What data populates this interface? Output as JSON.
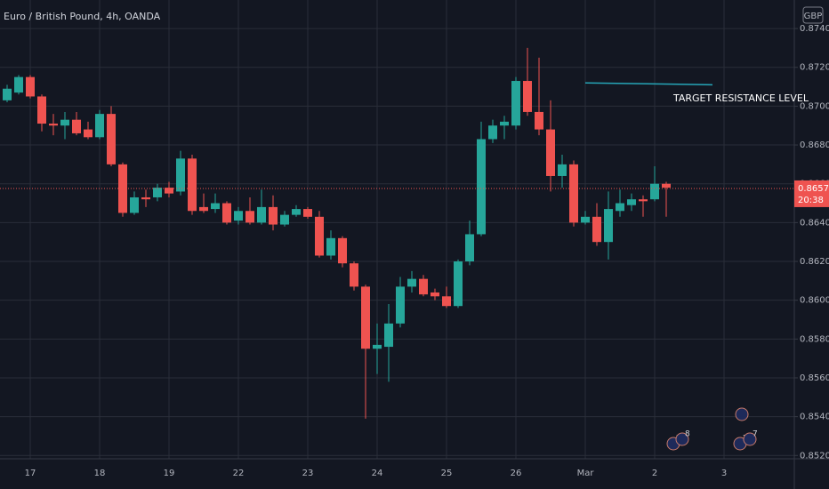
{
  "chart_data": {
    "type": "candlestick",
    "title": "Euro / British Pound, 4h, OANDA",
    "currency": "GBP",
    "categories": [
      null,
      null,
      "17",
      null,
      null,
      null,
      null,
      null,
      "18",
      null,
      null,
      null,
      null,
      null,
      "19",
      null,
      null,
      null,
      null,
      null,
      "22",
      null,
      null,
      null,
      null,
      null,
      "23",
      null,
      null,
      null,
      null,
      null,
      "24",
      null,
      null,
      null,
      null,
      null,
      "25",
      null,
      null,
      null,
      null,
      null,
      "26",
      null,
      null,
      null,
      null,
      null,
      "Mar",
      null,
      null,
      null,
      null,
      null,
      "2",
      null,
      null,
      null,
      null,
      null,
      "3"
    ],
    "open": [
      0.8703,
      0.8707,
      0.8715,
      0.8705,
      0.8691,
      0.869,
      0.8693,
      0.8688,
      0.8684,
      0.8696,
      0.867,
      0.8645,
      0.8653,
      0.8653,
      0.8658,
      0.8656,
      0.8673,
      0.8648,
      0.8647,
      0.865,
      0.8641,
      0.8646,
      0.864,
      0.8648,
      0.8639,
      0.8644,
      0.8647,
      0.8643,
      0.8623,
      0.8632,
      0.8619,
      0.8607,
      0.8575,
      0.8576,
      0.8588,
      0.8607,
      0.8611,
      0.8604,
      0.8602,
      0.8597,
      0.862,
      0.8634,
      0.8683,
      0.869,
      0.869,
      0.8713,
      0.8697,
      0.8688,
      0.8664,
      0.867,
      0.864,
      0.8643,
      0.863,
      0.8646,
      0.8649,
      0.8652,
      0.8652,
      0.866,
      null,
      null,
      null,
      null,
      null
    ],
    "high": [
      0.8711,
      0.8716,
      0.8716,
      0.8706,
      0.8696,
      0.8697,
      0.8697,
      0.8692,
      0.8698,
      0.87,
      0.8671,
      0.8656,
      0.8657,
      0.866,
      0.8661,
      0.8677,
      0.8675,
      0.8655,
      0.8655,
      0.8651,
      0.8648,
      0.8653,
      0.8657,
      0.8654,
      0.8646,
      0.8649,
      0.8648,
      0.8646,
      0.8636,
      0.8633,
      0.862,
      0.8608,
      0.8588,
      0.8598,
      0.8612,
      0.8615,
      0.8613,
      0.8606,
      0.8607,
      0.8621,
      0.8641,
      0.8692,
      0.8693,
      0.8695,
      0.8715,
      0.873,
      0.8725,
      0.8703,
      0.8675,
      0.8672,
      0.8646,
      0.865,
      0.8656,
      0.8657,
      0.8655,
      0.8654,
      0.8669,
      0.8661,
      null,
      null,
      null,
      null,
      null
    ],
    "low": [
      0.8702,
      0.8706,
      0.8704,
      0.8687,
      0.8685,
      0.8683,
      0.8685,
      0.8683,
      0.8683,
      0.8669,
      0.8643,
      0.8644,
      0.8648,
      0.8651,
      0.8653,
      0.8654,
      0.8644,
      0.8645,
      0.8645,
      0.8639,
      0.8639,
      0.8639,
      0.8639,
      0.8636,
      0.8638,
      0.8643,
      0.8642,
      0.8622,
      0.8621,
      0.8617,
      0.8605,
      0.8539,
      0.8562,
      0.8558,
      0.8586,
      0.8604,
      0.8602,
      0.86,
      0.8596,
      0.8596,
      0.8618,
      0.8633,
      0.8681,
      0.8683,
      0.8688,
      0.8695,
      0.8685,
      0.8656,
      0.8658,
      0.8638,
      0.8639,
      0.8628,
      0.8621,
      0.8643,
      0.8646,
      0.8643,
      0.8651,
      0.8643,
      null,
      null,
      null,
      null,
      null
    ],
    "close": [
      0.8709,
      0.8715,
      0.8705,
      0.8691,
      0.869,
      0.8693,
      0.8686,
      0.8684,
      0.8696,
      0.867,
      0.8645,
      0.8653,
      0.8652,
      0.8658,
      0.8655,
      0.8673,
      0.8646,
      0.8646,
      0.865,
      0.864,
      0.8646,
      0.864,
      0.8648,
      0.8639,
      0.8644,
      0.8647,
      0.8643,
      0.8623,
      0.8632,
      0.8619,
      0.8607,
      0.8575,
      0.8577,
      0.8588,
      0.8607,
      0.8611,
      0.8603,
      0.8602,
      0.8597,
      0.862,
      0.8634,
      0.8683,
      0.869,
      0.8692,
      0.8713,
      0.8697,
      0.8688,
      0.8664,
      0.867,
      0.864,
      0.8643,
      0.863,
      0.8647,
      0.865,
      0.8652,
      0.8651,
      0.866,
      0.8658,
      null,
      null,
      null,
      null,
      null
    ],
    "up_color": "#26a69a",
    "down_color": "#ef5350",
    "ylim": [
      0.85183,
      0.87547
    ],
    "yticks": [
      {
        "value": 0.852,
        "label": "0.85200"
      },
      {
        "value": 0.854,
        "label": "0.85400"
      },
      {
        "value": 0.856,
        "label": "0.85600"
      },
      {
        "value": 0.858,
        "label": "0.85800"
      },
      {
        "value": 0.86,
        "label": "0.86000"
      },
      {
        "value": 0.862,
        "label": "0.86200"
      },
      {
        "value": 0.864,
        "label": "0.86400"
      },
      {
        "value": 0.866,
        "label": "0.86600"
      },
      {
        "value": 0.868,
        "label": "0.86800"
      },
      {
        "value": 0.87,
        "label": "0.87000"
      },
      {
        "value": 0.872,
        "label": "0.87200"
      },
      {
        "value": 0.874,
        "label": "0.87400"
      }
    ],
    "grid": true,
    "last_price": 0.86576,
    "countdown": "20:38",
    "annotation": {
      "text": "TARGET RESISTANCE LEVEL",
      "x": [
        50,
        61
      ],
      "y": [
        0.8712,
        0.8711
      ]
    },
    "event_badges": [
      "2",
      "8",
      "2",
      "7"
    ]
  }
}
